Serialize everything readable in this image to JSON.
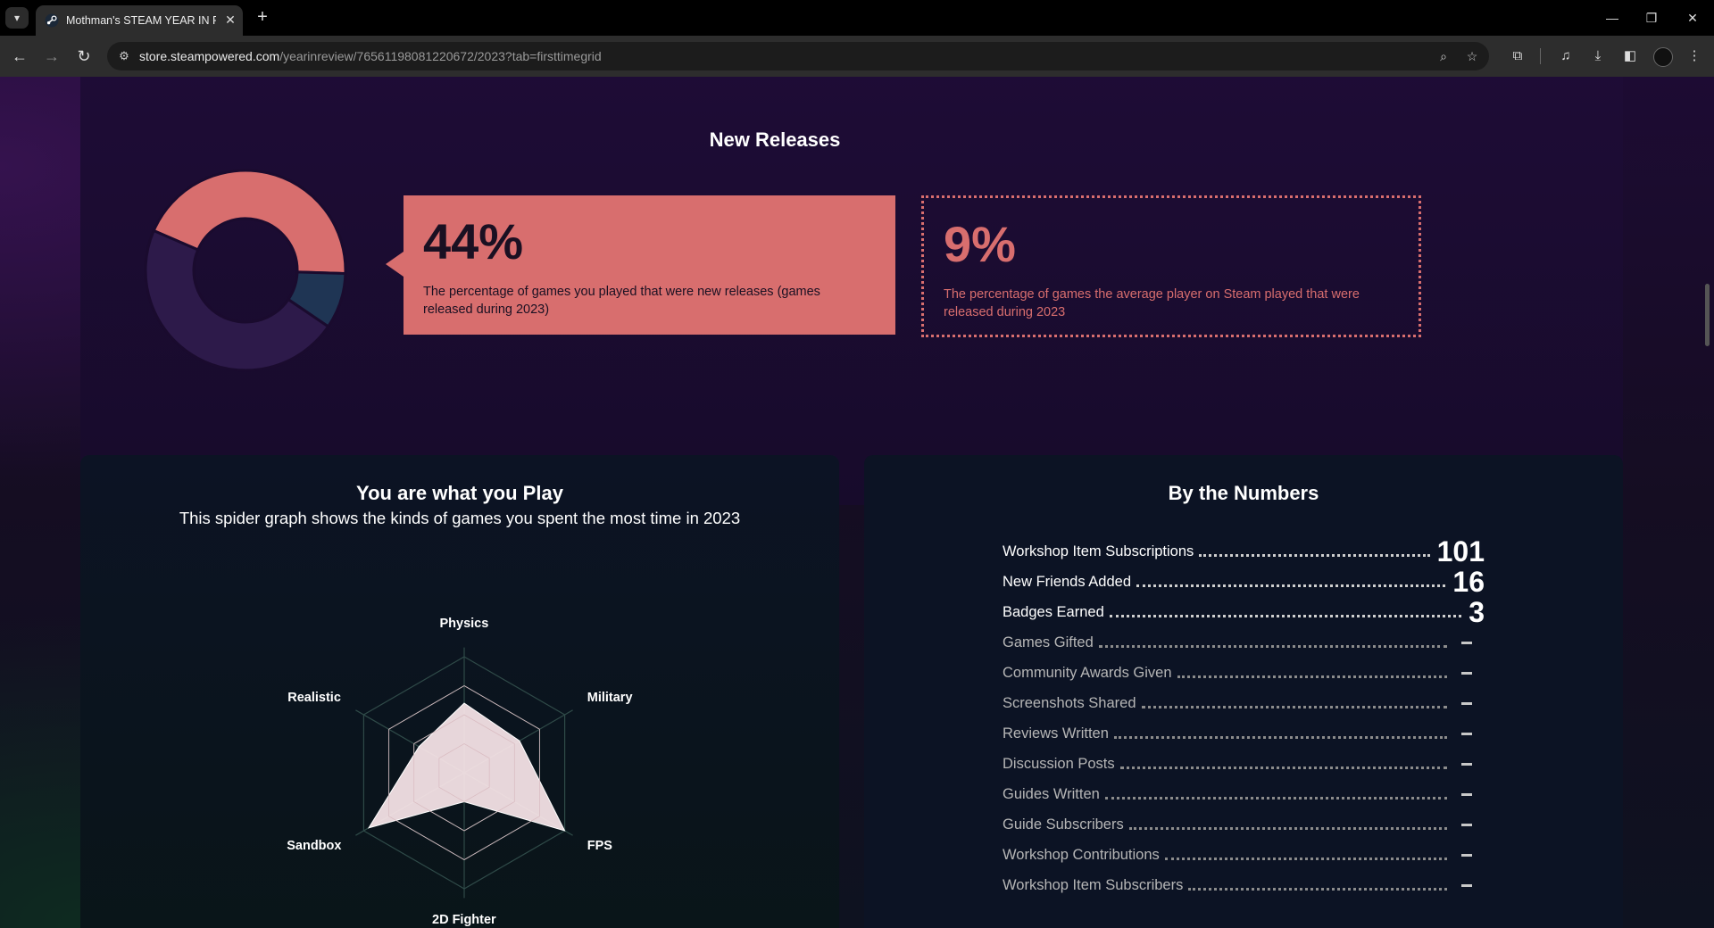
{
  "browser": {
    "tab_title": "Mothman's STEAM YEAR IN REVIEW",
    "tab_close": "✕",
    "new_tab": "+",
    "url_host": "store.steampowered.com",
    "url_path": "/yearinreview/76561198081220672/2023?tab=firsttimegrid",
    "icons": [
      "tab-search-icon",
      "back-icon",
      "forward-icon",
      "reload-icon",
      "site-info-icon",
      "zoom-icon",
      "bookmark-star-icon",
      "extensions-icon",
      "media-icon",
      "download-icon",
      "sidebar-icon",
      "profile-avatar",
      "menu-icon",
      "minimize-icon",
      "restore-icon",
      "close-icon"
    ]
  },
  "new_releases": {
    "title": "New Releases",
    "your_percent": "44%",
    "your_desc": "The percentage of games you played that were new releases (games released during 2023)",
    "avg_percent": "9%",
    "avg_desc": "The percentage of games the average player on Steam played that were released during 2023",
    "colors": {
      "accent": "#d86e6e",
      "navy": "#1f3554",
      "purple": "#2d1a4a"
    }
  },
  "spider": {
    "title": "You are what you Play",
    "subtitle": "This spider graph shows the kinds of games you spent the most time in 2023"
  },
  "by_numbers": {
    "title": "By the Numbers",
    "rows": [
      {
        "label": "Workshop Item Subscriptions",
        "value": "101"
      },
      {
        "label": "New Friends Added",
        "value": "16"
      },
      {
        "label": "Badges Earned",
        "value": "3"
      },
      {
        "label": "Games Gifted",
        "value": ""
      },
      {
        "label": "Community Awards Given",
        "value": ""
      },
      {
        "label": "Screenshots Shared",
        "value": ""
      },
      {
        "label": "Reviews Written",
        "value": ""
      },
      {
        "label": "Discussion Posts",
        "value": ""
      },
      {
        "label": "Guides Written",
        "value": ""
      },
      {
        "label": "Guide Subscribers",
        "value": ""
      },
      {
        "label": "Workshop Contributions",
        "value": ""
      },
      {
        "label": "Workshop Item Subscribers",
        "value": ""
      }
    ]
  },
  "chart_data": [
    {
      "type": "pie",
      "title": "New Releases",
      "donut": true,
      "slices": [
        {
          "value": 44,
          "color": "#d86e6e"
        },
        {
          "value": 9,
          "color": "#1f3554"
        },
        {
          "value": 47,
          "color": "#2d1a4a"
        }
      ]
    },
    {
      "type": "radar",
      "title": "You are what you Play",
      "axes": [
        "Physics",
        "Military",
        "FPS",
        "2D Fighter",
        "Sandbox",
        "Realistic"
      ],
      "values": [
        0.6,
        0.55,
        1.0,
        0.25,
        0.95,
        0.45
      ],
      "rings": 4,
      "fill": "#fbe7ea"
    }
  ]
}
